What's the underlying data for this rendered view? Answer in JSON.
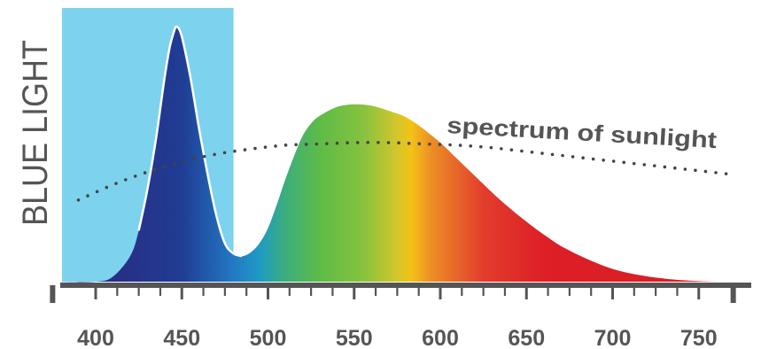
{
  "chart_data": {
    "type": "area",
    "xlabel": "",
    "ylabel": "",
    "xlim": [
      375,
      770
    ],
    "ylim": [
      0,
      1
    ],
    "x_ticks": [
      400,
      450,
      500,
      550,
      600,
      650,
      700,
      750
    ],
    "highlight_band": {
      "label": "BLUE LIGHT",
      "x_range": [
        375,
        480
      ],
      "color": "#7dd3ee"
    },
    "annotations": [
      {
        "text": "spectrum of sunlight"
      }
    ],
    "series": [
      {
        "kind": "led-spectrum",
        "style": "spectral-gradient-area",
        "x": [
          375,
          400,
          410,
          420,
          425,
          430,
          435,
          440,
          443,
          445,
          447,
          450,
          455,
          460,
          465,
          470,
          475,
          480,
          485,
          490,
          495,
          500,
          505,
          510,
          515,
          520,
          525,
          530,
          540,
          550,
          560,
          570,
          580,
          590,
          600,
          610,
          620,
          630,
          640,
          650,
          660,
          670,
          680,
          690,
          700,
          710,
          720,
          730,
          740,
          750,
          760
        ],
        "y": [
          0.0,
          0.0,
          0.02,
          0.1,
          0.2,
          0.36,
          0.56,
          0.8,
          0.92,
          0.97,
          1.0,
          0.96,
          0.8,
          0.6,
          0.42,
          0.26,
          0.15,
          0.11,
          0.1,
          0.115,
          0.15,
          0.21,
          0.3,
          0.4,
          0.49,
          0.57,
          0.62,
          0.65,
          0.685,
          0.695,
          0.69,
          0.67,
          0.645,
          0.6,
          0.545,
          0.48,
          0.415,
          0.35,
          0.29,
          0.235,
          0.185,
          0.14,
          0.105,
          0.075,
          0.05,
          0.033,
          0.021,
          0.012,
          0.006,
          0.002,
          0.0
        ]
      },
      {
        "kind": "sunlight",
        "style": "dotted-line",
        "x": [
          390,
          410,
          430,
          450,
          470,
          490,
          510,
          530,
          550,
          570,
          590,
          610,
          630,
          650,
          670,
          690,
          710,
          730,
          750,
          770
        ],
        "y": [
          0.32,
          0.38,
          0.43,
          0.47,
          0.5,
          0.52,
          0.535,
          0.54,
          0.545,
          0.545,
          0.54,
          0.535,
          0.525,
          0.51,
          0.495,
          0.48,
          0.465,
          0.45,
          0.435,
          0.42
        ]
      }
    ],
    "spectrum_colors": [
      {
        "nm": 400,
        "color": "#2b2a83"
      },
      {
        "nm": 450,
        "color": "#203c93"
      },
      {
        "nm": 480,
        "color": "#2279c4"
      },
      {
        "nm": 495,
        "color": "#1e9ac3"
      },
      {
        "nm": 510,
        "color": "#3cae7c"
      },
      {
        "nm": 530,
        "color": "#5ebb47"
      },
      {
        "nm": 555,
        "color": "#86c23f"
      },
      {
        "nm": 575,
        "color": "#d4c62b"
      },
      {
        "nm": 583,
        "color": "#f3c316"
      },
      {
        "nm": 595,
        "color": "#ec8d26"
      },
      {
        "nm": 625,
        "color": "#e23d2c"
      },
      {
        "nm": 660,
        "color": "#dd1f26"
      },
      {
        "nm": 760,
        "color": "#d71f26"
      }
    ],
    "colors": {
      "axis": "#555555",
      "peak_outline": "#ffffff",
      "sunlight_dots": "#444444"
    }
  }
}
